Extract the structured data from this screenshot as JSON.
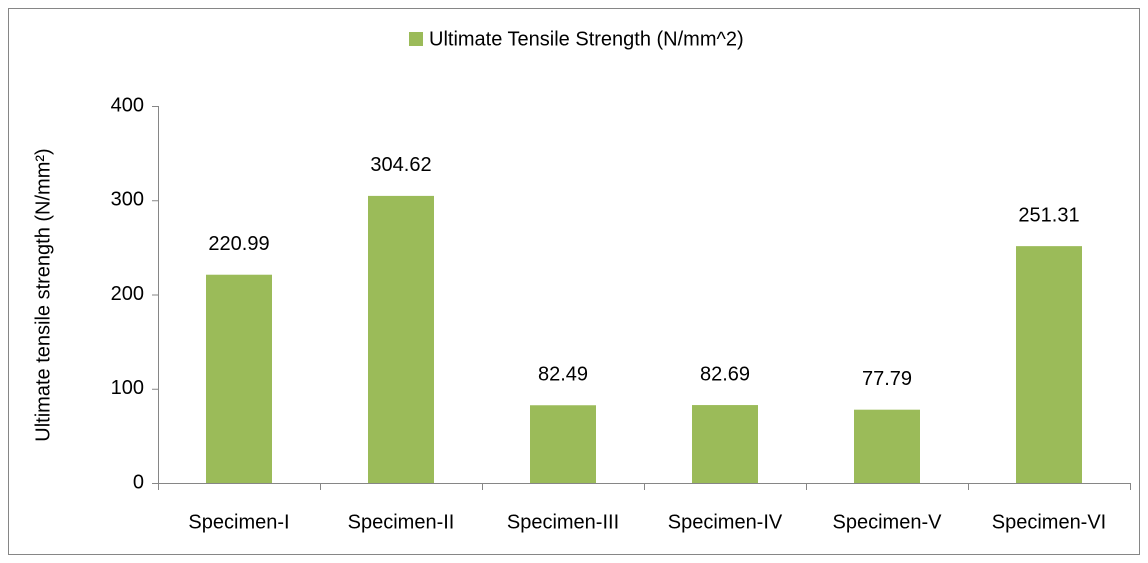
{
  "chart_data": {
    "type": "bar",
    "legend": "Ultimate Tensile Strength (N/mm^2)",
    "y_label": "Ultimate tensile strength (N/mm²)",
    "categories": [
      "Specimen-I",
      "Specimen-II",
      "Specimen-III",
      "Specimen-IV",
      "Specimen-V",
      "Specimen-VI"
    ],
    "values": [
      220.99,
      304.62,
      82.49,
      82.69,
      77.79,
      251.31
    ],
    "color": "#9bbb59",
    "ylim": [
      0,
      400
    ],
    "yticks": [
      0,
      100,
      200,
      300,
      400
    ],
    "grid": false
  }
}
